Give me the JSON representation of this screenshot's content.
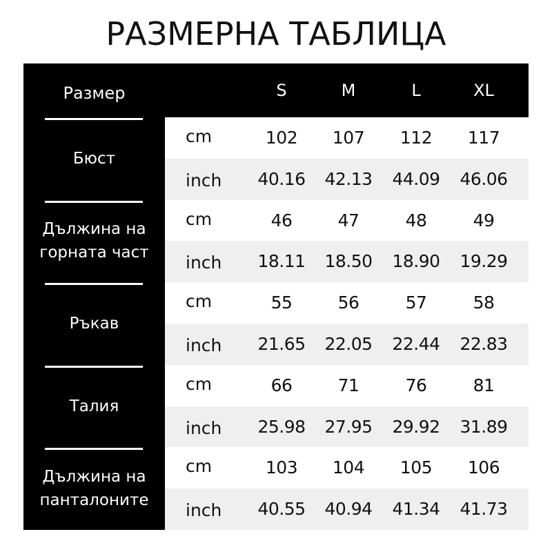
{
  "title": "РАЗМЕРНА ТАБЛИЦА",
  "header": {
    "label": "Размер",
    "sizes": [
      "S",
      "M",
      "L",
      "XL"
    ]
  },
  "groups": [
    {
      "label": "Бюст",
      "rows": [
        {
          "unit": "cm",
          "values": [
            "102",
            "107",
            "112",
            "117"
          ]
        },
        {
          "unit": "inch",
          "values": [
            "40.16",
            "42.13",
            "44.09",
            "46.06"
          ]
        }
      ]
    },
    {
      "label": "Дължина на горната част",
      "label_lines": [
        "Дължина на",
        "горната част"
      ],
      "rows": [
        {
          "unit": "cm",
          "values": [
            "46",
            "47",
            "48",
            "49"
          ]
        },
        {
          "unit": "inch",
          "values": [
            "18.11",
            "18.50",
            "18.90",
            "19.29"
          ]
        }
      ]
    },
    {
      "label": "Ръкав",
      "rows": [
        {
          "unit": "cm",
          "values": [
            "55",
            "56",
            "57",
            "58"
          ]
        },
        {
          "unit": "inch",
          "values": [
            "21.65",
            "22.05",
            "22.44",
            "22.83"
          ]
        }
      ]
    },
    {
      "label": "Талия",
      "rows": [
        {
          "unit": "cm",
          "values": [
            "66",
            "71",
            "76",
            "81"
          ]
        },
        {
          "unit": "inch",
          "values": [
            "25.98",
            "27.95",
            "29.92",
            "31.89"
          ]
        }
      ]
    },
    {
      "label": "Дължина на панталоните",
      "label_lines": [
        "Дължина на",
        "панталоните"
      ],
      "rows": [
        {
          "unit": "cm",
          "values": [
            "103",
            "104",
            "105",
            "106"
          ]
        },
        {
          "unit": "inch",
          "values": [
            "40.55",
            "40.94",
            "41.34",
            "41.73"
          ]
        }
      ]
    }
  ]
}
